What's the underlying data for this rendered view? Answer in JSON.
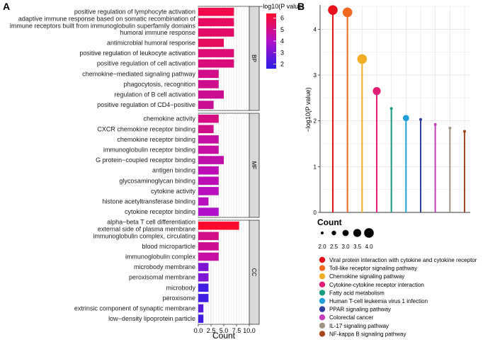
{
  "chart_data": [
    {
      "panel_label": "A",
      "type": "bar",
      "orientation": "horizontal",
      "xlabel": "Count",
      "xlim": [
        0,
        10
      ],
      "xticks": [
        "0.0",
        "2.5",
        "5.0",
        "7.5",
        "10.0"
      ],
      "legend": {
        "title": "−log10(P value)",
        "ticks": [
          "6",
          "5",
          "4",
          "3",
          "2"
        ],
        "tick_values": [
          6,
          5,
          4,
          3,
          2
        ],
        "range": [
          1.6,
          6.4
        ],
        "low_color": "#2b1ee6",
        "high_color": "#ff0a2a",
        "position": "top-right"
      },
      "facets": [
        {
          "name": "BP",
          "terms": [
            {
              "label": "positive regulation of lymphocyte activation",
              "count": 7,
              "p": 5.9
            },
            {
              "label": "adaptive immune response based on somatic recombination of\nimmune receptors built from immunoglobulin superfamily domains",
              "count": 7,
              "p": 5.6
            },
            {
              "label": "humoral immune response",
              "count": 7,
              "p": 5.5
            },
            {
              "label": "antimicrobial humoral response",
              "count": 5,
              "p": 5.6
            },
            {
              "label": "positive regulation of leukocyte activation",
              "count": 7,
              "p": 5.3
            },
            {
              "label": "positive regulation of cell activation",
              "count": 7,
              "p": 5.2
            },
            {
              "label": "chemokine−mediated signaling pathway",
              "count": 4,
              "p": 5.0
            },
            {
              "label": "phagocytosis, recognition",
              "count": 4,
              "p": 4.9
            },
            {
              "label": "regulation of B cell activation",
              "count": 5,
              "p": 4.8
            },
            {
              "label": "positive regulation of CD4−positive",
              "count": 3,
              "p": 4.8
            }
          ]
        },
        {
          "name": "MF",
          "terms": [
            {
              "label": "chemokine activity",
              "count": 4,
              "p": 5.1
            },
            {
              "label": "CXCR chemokine receptor binding",
              "count": 3,
              "p": 5.0
            },
            {
              "label": "chemokine receptor binding",
              "count": 4,
              "p": 4.6
            },
            {
              "label": "immunoglobulin receptor binding",
              "count": 4,
              "p": 4.6
            },
            {
              "label": "G protein−coupled receptor binding",
              "count": 5,
              "p": 4.5
            },
            {
              "label": "antigen binding",
              "count": 4,
              "p": 4.3
            },
            {
              "label": "glycosaminoglycan binding",
              "count": 4,
              "p": 4.3
            },
            {
              "label": "cytokine activity",
              "count": 4,
              "p": 4.2
            },
            {
              "label": "histone acetyltransferase binding",
              "count": 2,
              "p": 4.2
            },
            {
              "label": "cytokine receptor binding",
              "count": 4,
              "p": 4.0
            }
          ]
        },
        {
          "name": "CC",
          "terms": [
            {
              "label": "alpha−beta T cell differentiation\nexternal side of plasma membrane",
              "count": 8,
              "p": 6.4
            },
            {
              "label": "immunoglobulin complex, circulating",
              "count": 4,
              "p": 5.0
            },
            {
              "label": "blood microparticle",
              "count": 4,
              "p": 4.8
            },
            {
              "label": "immunoglobulin complex",
              "count": 4,
              "p": 4.6
            },
            {
              "label": "microbody membrane",
              "count": 2,
              "p": 3.1
            },
            {
              "label": "peroxisomal membrane",
              "count": 2,
              "p": 3.1
            },
            {
              "label": "microbody",
              "count": 2,
              "p": 2.0
            },
            {
              "label": "peroxisome",
              "count": 2,
              "p": 2.0
            },
            {
              "label": "extrinsic component of synaptic membrane",
              "count": 1,
              "p": 2.4
            },
            {
              "label": "low−density lipoprotein particle",
              "count": 1,
              "p": 2.0
            }
          ]
        }
      ]
    },
    {
      "panel_label": "B",
      "type": "scatter",
      "subtype": "lollipop",
      "ylabel": "−log10(P value)",
      "ylim": [
        0,
        4.5
      ],
      "yticks": [
        "0",
        "1",
        "2",
        "3",
        "4"
      ],
      "size_legend": {
        "title": "Count",
        "values": [
          2.0,
          2.5,
          3.0,
          3.5,
          4.0
        ],
        "labels": [
          "2.0",
          "2.5",
          "3.0",
          "3.5",
          "4.0"
        ]
      },
      "points": [
        {
          "name": "Viral protein interaction with cytokine and cytokine receptor",
          "y": 4.42,
          "count": 4,
          "color": "#e8111b"
        },
        {
          "name": "Toll-like receptor signaling pathway",
          "y": 4.37,
          "count": 4,
          "color": "#f26a22"
        },
        {
          "name": "Chemokine signaling pathway",
          "y": 3.35,
          "count": 4,
          "color": "#f2ad22"
        },
        {
          "name": "Cytokine-cytokine receptor interaction",
          "y": 2.65,
          "count": 3.5,
          "color": "#e11d75"
        },
        {
          "name": "Fatty acid metabolism",
          "y": 2.27,
          "count": 2,
          "color": "#1a9a83"
        },
        {
          "name": "Human T-cell leukemia virus 1 infection",
          "y": 2.06,
          "count": 3,
          "color": "#1fa0d8"
        },
        {
          "name": "PPAR signaling pathway",
          "y": 2.03,
          "count": 2,
          "color": "#2f3f9a"
        },
        {
          "name": "Colorectal cancer",
          "y": 1.92,
          "count": 2,
          "color": "#c63fbe"
        },
        {
          "name": "IL-17 signaling pathway",
          "y": 1.84,
          "count": 2,
          "color": "#a09484"
        },
        {
          "name": "NF-kappa B signaling pathway",
          "y": 1.77,
          "count": 2,
          "color": "#a8471c"
        }
      ]
    }
  ]
}
